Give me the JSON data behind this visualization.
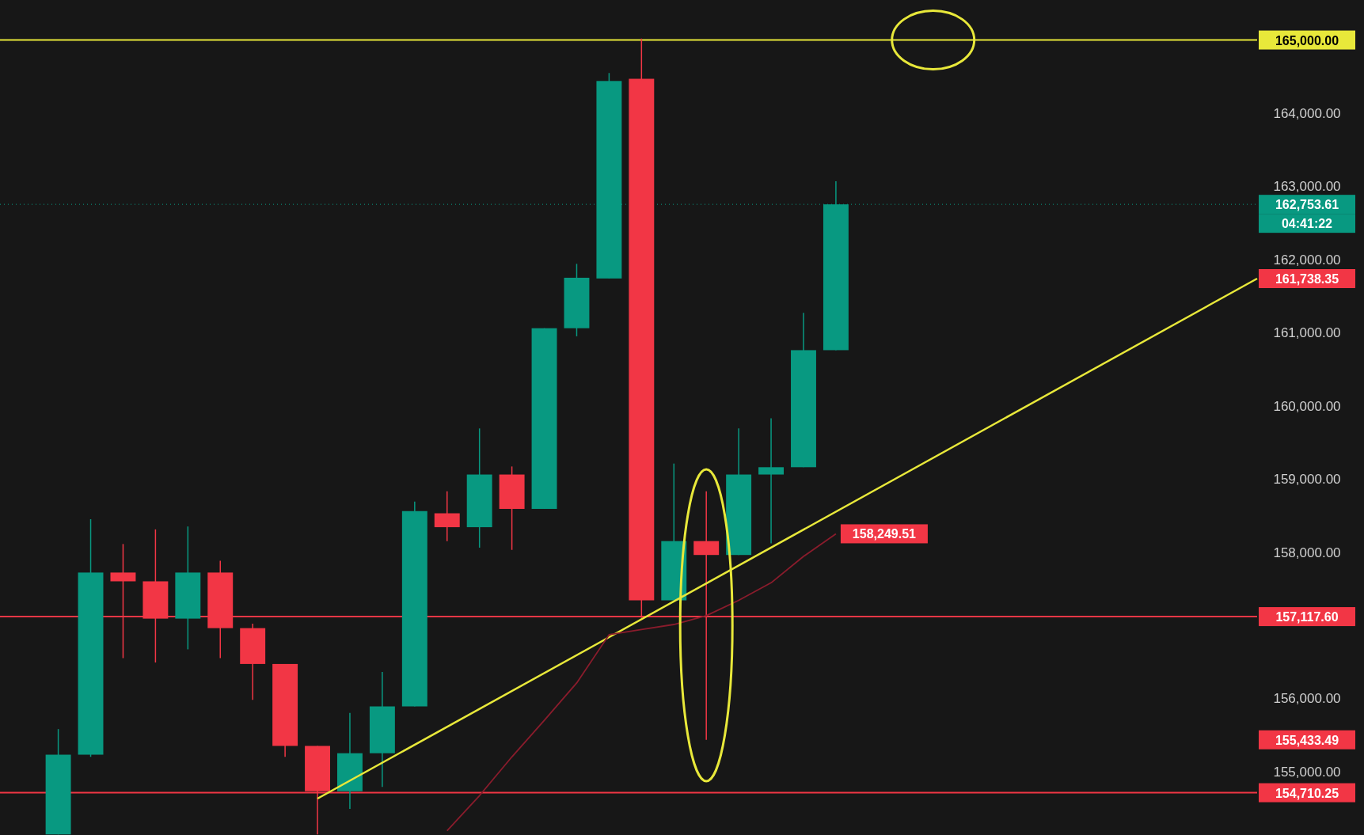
{
  "chart_data": {
    "type": "candlestick",
    "categories": [
      null,
      null,
      null,
      null,
      null,
      null,
      null,
      null,
      null,
      null,
      null,
      null,
      null,
      null,
      null,
      null,
      null,
      null,
      null,
      null,
      null,
      null,
      null,
      null,
      null,
      null,
      null,
      null,
      null,
      null,
      null,
      null,
      null,
      null,
      null,
      null,
      null,
      null
    ],
    "ohlc": [
      [
        154140,
        155580,
        154140,
        155230
      ],
      [
        155230,
        158450,
        155200,
        157720
      ],
      [
        157720,
        158110,
        156550,
        157600
      ],
      [
        157600,
        158310,
        156490,
        157090
      ],
      [
        157090,
        158350,
        156670,
        157720
      ],
      [
        157720,
        157880,
        156550,
        156960
      ],
      [
        156960,
        157020,
        155980,
        156470
      ],
      [
        156470,
        156470,
        155200,
        155350
      ],
      [
        155350,
        155350,
        154140,
        154730
      ],
      [
        154730,
        155800,
        154490,
        155250
      ],
      [
        155250,
        156360,
        154790,
        155890
      ],
      [
        155890,
        158690,
        155890,
        158560
      ],
      [
        158530,
        158830,
        158150,
        158340
      ],
      [
        158340,
        159690,
        158060,
        159060
      ],
      [
        159060,
        159170,
        158030,
        158590
      ],
      [
        158590,
        161060,
        158590,
        161060
      ],
      [
        161060,
        161940,
        160950,
        161750
      ],
      [
        161740,
        164550,
        161740,
        164440
      ],
      [
        164470,
        165020,
        157100,
        157340
      ],
      [
        157340,
        159210,
        157340,
        158150
      ],
      [
        158150,
        158830,
        155433.49,
        157960
      ],
      [
        157960,
        159690,
        157960,
        159060
      ],
      [
        159060,
        159830,
        158120,
        159160
      ],
      [
        159160,
        161270,
        159160,
        160760
      ],
      [
        160760,
        163070,
        160760,
        162753.61
      ],
      null,
      null,
      null,
      null,
      null,
      null,
      null,
      null,
      null,
      null,
      null,
      null,
      null
    ],
    "colors": [
      "#089981",
      "#089981",
      "#f23645",
      "#f23645",
      "#089981",
      "#f23645",
      "#f23645",
      "#f23645",
      "#f23645",
      "#089981",
      "#089981",
      "#089981",
      "#f23645",
      "#089981",
      "#f23645",
      "#089981",
      "#089981",
      "#089981",
      "#f23645",
      "#089981",
      "#f23645",
      "#089981",
      "#089981",
      "#089981",
      "#089981",
      null,
      null,
      null,
      null,
      null,
      null,
      null,
      null,
      null,
      null,
      null,
      null,
      null
    ],
    "value_labels": [
      null,
      null,
      null,
      null,
      null,
      null,
      null,
      null,
      null,
      null,
      null,
      null,
      null,
      null,
      null,
      null,
      null,
      null,
      null,
      null,
      "155,433.49",
      null,
      null,
      null,
      null,
      null,
      null,
      null,
      null,
      null,
      null,
      null,
      null,
      null,
      null,
      null,
      null,
      null
    ],
    "series": [
      {
        "type": "line",
        "color": "#e8e83a",
        "values": [
          null,
          null,
          null,
          null,
          null,
          null,
          null,
          null,
          154630,
          null,
          null,
          null,
          null,
          null,
          null,
          null,
          null,
          null,
          null,
          null,
          null,
          null,
          null,
          null,
          null,
          null,
          null,
          null,
          null,
          null,
          null,
          null,
          null,
          null,
          null,
          null,
          null,
          161738.35
        ],
        "value_labels": [
          null,
          null,
          null,
          null,
          null,
          null,
          null,
          null,
          null,
          null,
          null,
          null,
          null,
          null,
          null,
          null,
          null,
          null,
          null,
          null,
          null,
          null,
          null,
          null,
          null,
          null,
          null,
          null,
          null,
          null,
          null,
          null,
          null,
          null,
          null,
          null,
          null,
          "161,738.35"
        ]
      },
      {
        "type": "line",
        "color": "#8a1c2c",
        "values": [
          null,
          null,
          null,
          null,
          null,
          null,
          null,
          null,
          null,
          null,
          null,
          null,
          154190,
          154670,
          155200,
          155700,
          156210,
          156870,
          156940,
          157010,
          157130,
          157340,
          157580,
          157940,
          158249.51,
          null,
          null,
          null,
          null,
          null,
          null,
          null,
          null,
          null,
          null,
          null,
          null,
          null
        ],
        "value_labels": [
          null,
          null,
          null,
          null,
          null,
          null,
          null,
          null,
          null,
          null,
          null,
          null,
          null,
          null,
          null,
          null,
          null,
          null,
          null,
          null,
          null,
          null,
          null,
          null,
          "158,249.51",
          null,
          null,
          null,
          null,
          null,
          null,
          null,
          null,
          null,
          null,
          null,
          null,
          null
        ]
      }
    ],
    "ylim": [
      154132,
      165547
    ],
    "yticks": [
      {
        "value": 155000,
        "label": "155,000.00"
      },
      {
        "value": 156000,
        "label": "156,000.00"
      },
      {
        "value": 158000,
        "label": "158,000.00"
      },
      {
        "value": 159000,
        "label": "159,000.00"
      },
      {
        "value": 160000,
        "label": "160,000.00"
      },
      {
        "value": 161000,
        "label": "161,000.00"
      },
      {
        "value": 162000,
        "label": "162,000.00"
      },
      {
        "value": 163000,
        "label": "163,000.00"
      },
      {
        "value": 164000,
        "label": "164,000.00"
      }
    ],
    "ref_lines": [
      {
        "axis": "y",
        "value": 165000,
        "label": "165,000.00",
        "color": "#e8e83a",
        "line_style": "solid"
      },
      {
        "axis": "y",
        "value": 162753.61,
        "label": "162,753.61",
        "color": "#089981",
        "line_style": "dotted"
      },
      {
        "axis": "y",
        "value": 157117.6,
        "label": "157,117.60",
        "color": "#f23645",
        "line_style": "solid"
      },
      {
        "axis": "y",
        "value": 154710.25,
        "label": "154,710.25",
        "color": "#f23645",
        "line_style": "solid"
      }
    ],
    "annotations": [
      "04:41:22"
    ],
    "grid": false
  }
}
